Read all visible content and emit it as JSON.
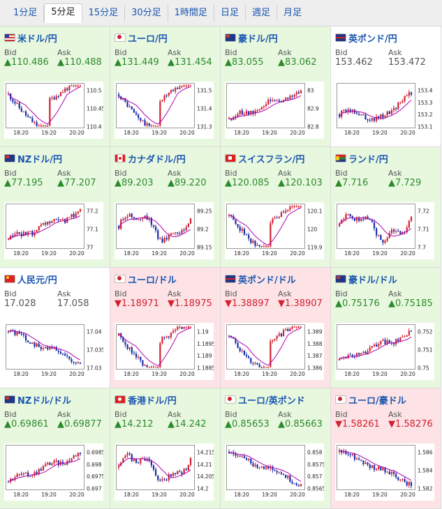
{
  "tabs": [
    {
      "label": "1分足",
      "active": false
    },
    {
      "label": "5分足",
      "active": true
    },
    {
      "label": "15分足",
      "active": false
    },
    {
      "label": "30分足",
      "active": false
    },
    {
      "label": "1時間足",
      "active": false
    },
    {
      "label": "日足",
      "active": false
    },
    {
      "label": "週足",
      "active": false
    },
    {
      "label": "月足",
      "active": false
    }
  ],
  "bid_label": "Bid",
  "ask_label": "Ask",
  "colors": {
    "up_bg": "#e8f8df",
    "down_bg": "#fde3e5",
    "up_text": "#2b8a2b",
    "down_text": "#d32030",
    "candle_up": "#d32030",
    "candle_down": "#1a2ea8",
    "ma": "#b000b0"
  },
  "time_labels": [
    "18:20",
    "19:20",
    "20:20"
  ],
  "pairs": [
    {
      "name": "米ドル/円",
      "flag": "us",
      "dir": "up",
      "bid": "▲110.486",
      "ask": "▲110.488",
      "yticks": [
        "110.5",
        "110.45",
        "110.4"
      ],
      "trend": "vbounce",
      "ma": "flat"
    },
    {
      "name": "ユーロ/円",
      "flag": "eu",
      "dir": "up",
      "bid": "▲131.449",
      "ask": "▲131.454",
      "yticks": [
        "131.5",
        "131.4",
        "131.3"
      ],
      "trend": "vbounce",
      "ma": "flat"
    },
    {
      "name": "豪ドル/円",
      "flag": "au",
      "dir": "up",
      "bid": "▲83.055",
      "ask": "▲83.062",
      "yticks": [
        "83",
        "82.9",
        "82.8"
      ],
      "trend": "up",
      "ma": "up"
    },
    {
      "name": "英ポンド/円",
      "flag": "gb",
      "dir": "neutral",
      "bid": "153.462",
      "ask": "153.472",
      "yticks": [
        "153.4",
        "153.3",
        "153.2",
        "153.1"
      ],
      "trend": "lateup",
      "ma": "flat"
    },
    {
      "name": "NZドル/円",
      "flag": "nz",
      "dir": "up",
      "bid": "▲77.195",
      "ask": "▲77.207",
      "yticks": [
        "77.2",
        "77.1",
        "77"
      ],
      "trend": "up",
      "ma": "up"
    },
    {
      "name": "カナダドル/円",
      "flag": "ca",
      "dir": "up",
      "bid": "▲89.203",
      "ask": "▲89.220",
      "yticks": [
        "89.25",
        "89.2",
        "89.15"
      ],
      "trend": "wave",
      "ma": "flat"
    },
    {
      "name": "スイスフラン/円",
      "flag": "ch",
      "dir": "up",
      "bid": "▲120.085",
      "ask": "▲120.103",
      "yticks": [
        "120.1",
        "120",
        "119.9"
      ],
      "trend": "vbounce",
      "ma": "down"
    },
    {
      "name": "ランド/円",
      "flag": "za",
      "dir": "up",
      "bid": "▲7.716",
      "ask": "▲7.729",
      "yticks": [
        "7.72",
        "7.71",
        "7.7"
      ],
      "trend": "wave",
      "ma": "flat"
    },
    {
      "name": "人民元/円",
      "flag": "cn",
      "dir": "neutral",
      "bid": "17.028",
      "ask": "17.058",
      "yticks": [
        "17.04",
        "17.035",
        "17.03"
      ],
      "trend": "down",
      "ma": "down"
    },
    {
      "name": "ユーロ/ドル",
      "flag": "eu",
      "dir": "down",
      "bid": "▼1.18971",
      "ask": "▼1.18975",
      "yticks": [
        "1.19",
        "1.1895",
        "1.189",
        "1.1885"
      ],
      "trend": "vbounce",
      "ma": "flat"
    },
    {
      "name": "英ポンド/ドル",
      "flag": "gb",
      "dir": "down",
      "bid": "▼1.38897",
      "ask": "▼1.38907",
      "yticks": [
        "1.389",
        "1.388",
        "1.387",
        "1.386"
      ],
      "trend": "vbounce",
      "ma": "flat"
    },
    {
      "name": "豪ドル/ドル",
      "flag": "au",
      "dir": "up",
      "bid": "▲0.75176",
      "ask": "▲0.75185",
      "yticks": [
        "0.752",
        "0.751",
        "0.75"
      ],
      "trend": "up",
      "ma": "up"
    },
    {
      "name": "NZドル/ドル",
      "flag": "nz",
      "dir": "up",
      "bid": "▲0.69861",
      "ask": "▲0.69877",
      "yticks": [
        "0.6985",
        "0.698",
        "0.6975",
        "0.697"
      ],
      "trend": "up",
      "ma": "up"
    },
    {
      "name": "香港ドル/円",
      "flag": "hk",
      "dir": "up",
      "bid": "▲14.212",
      "ask": "▲14.242",
      "yticks": [
        "14.215",
        "14.21",
        "14.205",
        "14.2"
      ],
      "trend": "wave",
      "ma": "flat"
    },
    {
      "name": "ユーロ/英ポンド",
      "flag": "eu",
      "dir": "up",
      "bid": "▲0.85653",
      "ask": "▲0.85663",
      "yticks": [
        "0.858",
        "0.8575",
        "0.857",
        "0.8565"
      ],
      "trend": "down",
      "ma": "down"
    },
    {
      "name": "ユーロ/豪ドル",
      "flag": "eu",
      "dir": "down",
      "bid": "▼1.58261",
      "ask": "▼1.58276",
      "yticks": [
        "1.586",
        "1.584",
        "1.582"
      ],
      "trend": "down",
      "ma": "down"
    }
  ]
}
